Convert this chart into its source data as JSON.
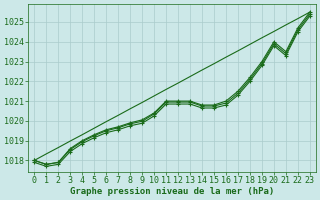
{
  "x": [
    0,
    1,
    2,
    3,
    4,
    5,
    6,
    7,
    8,
    9,
    10,
    11,
    12,
    13,
    14,
    15,
    16,
    17,
    18,
    19,
    20,
    21,
    22,
    23
  ],
  "line_straight": [
    1018.0,
    1018.33,
    1018.65,
    1018.98,
    1019.3,
    1019.63,
    1019.96,
    1020.28,
    1020.61,
    1020.93,
    1021.26,
    1021.59,
    1021.91,
    1022.24,
    1022.57,
    1022.89,
    1023.22,
    1023.54,
    1023.87,
    1024.2,
    1024.52,
    1024.85,
    1025.17,
    1025.5
  ],
  "line_marked1": [
    1018.0,
    1017.8,
    1017.9,
    1018.6,
    1019.0,
    1019.3,
    1019.55,
    1019.7,
    1019.9,
    1020.05,
    1020.4,
    1021.0,
    1021.0,
    1021.0,
    1020.8,
    1020.8,
    1021.0,
    1021.5,
    1022.2,
    1023.0,
    1024.0,
    1023.5,
    1024.7,
    1025.5
  ],
  "line_marked2": [
    1018.0,
    1017.8,
    1017.9,
    1018.55,
    1018.95,
    1019.25,
    1019.5,
    1019.65,
    1019.85,
    1019.98,
    1020.35,
    1020.95,
    1020.95,
    1020.95,
    1020.75,
    1020.75,
    1020.9,
    1021.4,
    1022.1,
    1022.9,
    1023.9,
    1023.4,
    1024.6,
    1025.4
  ],
  "bg_color": "#cce8e8",
  "grid_color": "#aacccc",
  "line_color": "#1a6b1a",
  "xlabel": "Graphe pression niveau de la mer (hPa)",
  "ylim": [
    1017.4,
    1025.9
  ],
  "xlim": [
    -0.5,
    23.5
  ],
  "yticks": [
    1018,
    1019,
    1020,
    1021,
    1022,
    1023,
    1024,
    1025
  ],
  "xticks": [
    0,
    1,
    2,
    3,
    4,
    5,
    6,
    7,
    8,
    9,
    10,
    11,
    12,
    13,
    14,
    15,
    16,
    17,
    18,
    19,
    20,
    21,
    22,
    23
  ],
  "tick_color": "#1a6b1a"
}
